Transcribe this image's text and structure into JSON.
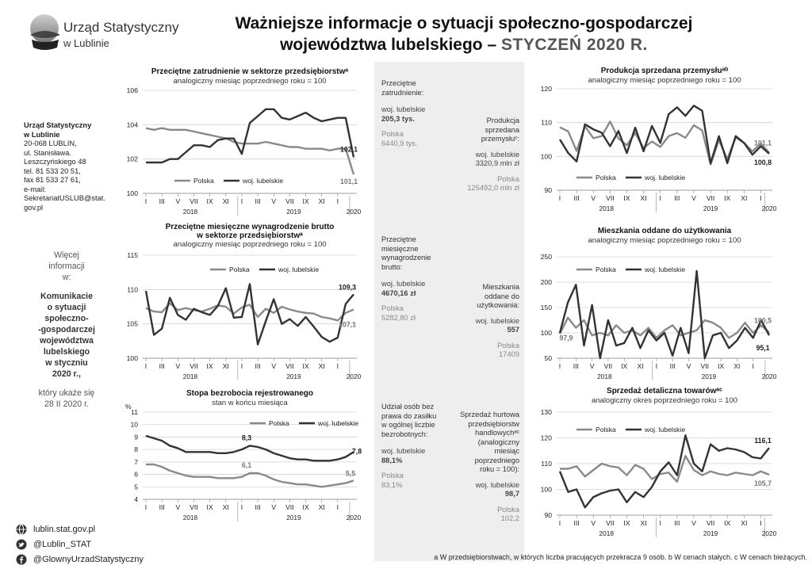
{
  "logo": {
    "line1": "Urząd Statystyczny",
    "line2": "w Lublinie"
  },
  "title": {
    "line1": "Ważniejsze informacje o sytuacji społeczno-gospodarczej",
    "line2": "województwa lubelskiego –",
    "date": "STYCZEŃ 2020 R."
  },
  "address": {
    "name1": "Urząd Statystyczny",
    "name2": "w Lublinie",
    "lines": [
      "20-068 LUBLIN,",
      "ul. Stanisława.",
      "Leszczyńskiego 48",
      "tel. 81 533 20 51,",
      "fax 81 533 27 61,",
      "e-mail:",
      "SekretariatUSLUB@stat.",
      "gov.pl"
    ]
  },
  "more_info": {
    "lines_top": [
      "Więcej",
      "informacji",
      "w:"
    ],
    "lines_bold": [
      "Komunikacie",
      "o sytuacji",
      "społeczno-",
      "-gospodarczej",
      "województwa",
      "lubelskiego",
      "w styczniu",
      "2020 r.,"
    ],
    "lines_bottom": [
      "który ukaże się",
      "28 II 2020 r."
    ]
  },
  "social": {
    "web": "lublin.stat.gov.pl",
    "twitter": "@Lublin_STAT",
    "facebook": "@GlownyUrzadStatystyczny"
  },
  "middle": {
    "employment": {
      "label": [
        "Przeciętne",
        "zatrudnienie:"
      ],
      "region_label": "woj. lubelskie",
      "region_value": "205,3 tys.",
      "country_label": "Polska",
      "country_value": "6440,9 tys."
    },
    "production": {
      "label": [
        "Produkcja",
        "sprzedana",
        "przemysłuᶜ:"
      ],
      "region_label": "woj. lubelskie",
      "region_value": "3320,9  mln zł",
      "country_label": "Polska",
      "country_value": "125492,0 mln zł"
    },
    "wages": {
      "label": [
        "Przeciętne",
        "miesięczne",
        "wynagrodzenie",
        "brutto:"
      ],
      "region_label": "woj. lubelskie",
      "region_value": "4670,16 zł",
      "country_label": "Polska",
      "country_value": "5282,80 zł"
    },
    "dwellings": {
      "label": [
        "Mieszkania",
        "oddane do",
        "użytkowania:"
      ],
      "region_label": "woj. lubelskie",
      "region_value": "557",
      "country_label": "Polska",
      "country_value": "17409"
    },
    "benefits": {
      "label": [
        "Udział osób bez",
        "prawa do zasiłku",
        "w ogólnej liczbie",
        "bezrobotnych:"
      ],
      "region_label": "woj. lubelskie",
      "region_value": "88,1%",
      "country_label": "Polska",
      "country_value": "83,1%"
    },
    "wholesale": {
      "label": [
        "Sprzedaż hurtowa",
        "przedsiębiorstw",
        "handlowychᵃᶜ",
        "(analogiczny",
        "miesiąc",
        "poprzedniego",
        "roku = 100):"
      ],
      "region_label": "woj. lubelskie",
      "region_value": "98,7",
      "country_label": "Polska",
      "country_value": "102,2"
    }
  },
  "footnote": "a W przedsiębiorstwach, w których liczba pracujących przekracza 9 osób.  b W cenach stałych.  c W cenach bieżących.",
  "colors": {
    "polska": "#8a8a8a",
    "region": "#333333"
  },
  "chart_data": [
    {
      "id": "employment",
      "type": "line",
      "title": "Przeciętne zatrudnienie w sektorze przedsiębiorstwᵃ",
      "subtitle": "analogiczny miesiąc poprzedniego roku = 100",
      "x_labels": [
        "I",
        "III",
        "V",
        "VII",
        "IX",
        "XI",
        "I",
        "III",
        "V",
        "VII",
        "IX",
        "XI",
        "I"
      ],
      "years": [
        "2018",
        "2019",
        "2020"
      ],
      "ylim": [
        100,
        106
      ],
      "yticks": [
        100,
        102,
        104,
        106
      ],
      "ytick_labels": [
        "100",
        "102",
        "104",
        "106"
      ],
      "legend": [
        "Polska",
        "woj. lubelskie"
      ],
      "series": [
        {
          "name": "Polska",
          "values": [
            103.8,
            103.7,
            103.8,
            103.7,
            103.7,
            103.7,
            103.6,
            103.5,
            103.4,
            103.3,
            103.2,
            103.0,
            102.9,
            102.9,
            102.9,
            103.0,
            102.9,
            102.8,
            102.7,
            102.7,
            102.6,
            102.6,
            102.6,
            102.5,
            102.6,
            102.6,
            101.1
          ]
        },
        {
          "name": "woj. lubelskie",
          "values": [
            101.8,
            101.8,
            101.8,
            102.0,
            102.0,
            102.4,
            102.8,
            102.8,
            102.7,
            103.1,
            103.2,
            103.2,
            102.3,
            104.1,
            104.5,
            104.9,
            104.9,
            104.4,
            104.3,
            104.5,
            104.7,
            104.4,
            104.2,
            104.3,
            104.4,
            104.4,
            102.1
          ]
        }
      ],
      "annotations": {
        "region_last": "102,1",
        "polska_last": "101,1"
      }
    },
    {
      "id": "wages",
      "type": "line",
      "title": "Przeciętne miesięczne wynagrodzenie brutto",
      "title2": "w sektorze przedsiębiorstwᵃ",
      "subtitle": "analogiczny miesiąc poprzedniego roku = 100",
      "x_labels": [
        "I",
        "III",
        "V",
        "VII",
        "IX",
        "XI",
        "I",
        "III",
        "V",
        "VII",
        "IX",
        "XI",
        "I"
      ],
      "years": [
        "2018",
        "2019",
        "2020"
      ],
      "ylim": [
        100,
        115
      ],
      "yticks": [
        100,
        105,
        110,
        115
      ],
      "ytick_labels": [
        "100",
        "105",
        "110",
        "115"
      ],
      "legend": [
        "Polska",
        "woj. lubelskie"
      ],
      "series": [
        {
          "name": "Polska",
          "values": [
            107.3,
            106.8,
            106.7,
            108.0,
            107.0,
            107.3,
            107.0,
            106.8,
            107.2,
            107.7,
            107.5,
            106.5,
            107.4,
            107.8,
            106.0,
            107.2,
            106.6,
            107.5,
            107.1,
            106.8,
            106.6,
            106.5,
            106.0,
            105.8,
            105.5,
            106.6,
            107.1
          ]
        },
        {
          "name": "woj. lubelskie",
          "values": [
            109.8,
            103.4,
            104.3,
            108.8,
            106.3,
            105.6,
            107.2,
            106.7,
            106.3,
            107.6,
            110.2,
            105.9,
            106.0,
            110.8,
            102.0,
            105.4,
            108.6,
            105.0,
            105.7,
            104.7,
            106.0,
            104.6,
            103.1,
            102.4,
            103.0,
            107.9,
            109.3
          ]
        }
      ],
      "annotations": {
        "region_last": "109,3",
        "polska_last": "107,1"
      }
    },
    {
      "id": "unemployment",
      "type": "line",
      "title": "Stopa bezrobocia rejestrowanego",
      "subtitle": "stan w końcu miesiąca",
      "yunit": "%",
      "x_labels": [
        "I",
        "III",
        "V",
        "VII",
        "IX",
        "XI",
        "I",
        "III",
        "V",
        "VII",
        "IX",
        "XI",
        "I"
      ],
      "years": [
        "2018",
        "2019",
        "2020"
      ],
      "ylim": [
        4,
        11
      ],
      "yticks": [
        4,
        5,
        6,
        7,
        8,
        9,
        10,
        11
      ],
      "ytick_labels": [
        "4",
        "5",
        "6",
        "7",
        "8",
        "9",
        "10",
        "11"
      ],
      "legend": [
        "Polska",
        "woj. lubelskie"
      ],
      "series": [
        {
          "name": "Polska",
          "values": [
            6.8,
            6.8,
            6.6,
            6.3,
            6.1,
            5.9,
            5.8,
            5.8,
            5.8,
            5.7,
            5.7,
            5.7,
            5.8,
            6.1,
            6.1,
            5.9,
            5.6,
            5.4,
            5.3,
            5.2,
            5.2,
            5.1,
            5.0,
            5.1,
            5.2,
            5.3,
            5.5
          ]
        },
        {
          "name": "woj. lubelskie",
          "values": [
            9.1,
            8.9,
            8.7,
            8.3,
            8.1,
            7.8,
            7.8,
            7.8,
            7.8,
            7.7,
            7.7,
            7.8,
            8.0,
            8.3,
            8.2,
            8.0,
            7.7,
            7.5,
            7.3,
            7.2,
            7.2,
            7.1,
            7.1,
            7.1,
            7.2,
            7.4,
            7.8
          ]
        }
      ],
      "annotations": {
        "region_mid": "8,3",
        "polska_mid": "6,1",
        "region_last": "7,8",
        "polska_last": "5,5"
      }
    },
    {
      "id": "production",
      "type": "line",
      "title": "Produkcja sprzedana przemysłuᵃᵇ",
      "subtitle": "analogiczny miesiąc poprzedniego roku = 100",
      "x_labels": [
        "I",
        "III",
        "V",
        "VII",
        "IX",
        "XI",
        "I",
        "III",
        "V",
        "VII",
        "IX",
        "XI",
        "I"
      ],
      "years": [
        "2018",
        "2019",
        "2020"
      ],
      "ylim": [
        90,
        120
      ],
      "yticks": [
        90,
        100,
        110,
        120
      ],
      "ytick_labels": [
        "90",
        "100",
        "110",
        "120"
      ],
      "legend": [
        "Polska",
        "woj. lubelskie"
      ],
      "series": [
        {
          "name": "Polska",
          "values": [
            108.6,
            107.4,
            101.6,
            108.9,
            105.4,
            106.0,
            110.3,
            105.3,
            103.3,
            106.9,
            102.5,
            104.4,
            102.8,
            106.0,
            106.9,
            105.5,
            109.2,
            107.7,
            97.6,
            104.8,
            99.2,
            105.6,
            104.0,
            101.5,
            103.8,
            101.1
          ]
        },
        {
          "name": "woj. lubelskie",
          "values": [
            105.0,
            101.0,
            98.5,
            109.5,
            108.0,
            107.0,
            103.0,
            107.5,
            101.0,
            108.5,
            101.5,
            109.0,
            104.0,
            112.5,
            114.5,
            112.0,
            115.0,
            113.5,
            98.0,
            106.0,
            98.0,
            106.0,
            104.0,
            100.5,
            103.0,
            100.8
          ]
        }
      ],
      "annotations": {
        "polska_last": "101,1",
        "region_last": "100,8"
      }
    },
    {
      "id": "dwellings",
      "type": "line",
      "title": "Mieszkania oddane do użytkowania",
      "subtitle": "analogiczny miesiąc poprzedniego roku = 100",
      "x_labels": [
        "I",
        "III",
        "V",
        "VII",
        "IX",
        "XI",
        "I",
        "III",
        "V",
        "VII",
        "IX",
        "XI",
        "I"
      ],
      "years": [
        "2018",
        "2019",
        "2020"
      ],
      "ylim": [
        50,
        250
      ],
      "yticks": [
        50,
        100,
        150,
        200,
        250
      ],
      "ytick_labels": [
        "50",
        "100",
        "150",
        "200",
        "250"
      ],
      "legend": [
        "Polska",
        "woj. lubelskie"
      ],
      "series": [
        {
          "name": "Polska",
          "values": [
            97.9,
            130,
            110,
            125,
            95,
            100,
            95,
            115,
            100,
            105,
            95,
            110,
            90,
            105,
            115,
            95,
            100,
            105,
            125,
            120,
            110,
            90,
            100,
            120,
            100,
            115,
            100.5
          ]
        },
        {
          "name": "woj. lubelskie",
          "values": [
            100,
            160,
            195,
            75,
            155,
            50,
            125,
            75,
            80,
            110,
            70,
            105,
            85,
            100,
            55,
            110,
            60,
            222,
            50,
            95,
            100,
            70,
            85,
            110,
            90,
            125,
            95.1
          ]
        }
      ],
      "annotations": {
        "polska_first": "97,9",
        "polska_last": "100,5",
        "region_last": "95,1"
      }
    },
    {
      "id": "retail",
      "type": "line",
      "title": "Sprzedaż detaliczna towarówᵃᶜ",
      "subtitle": "analogiczny okres poprzedniego roku = 100",
      "x_labels": [
        "I",
        "III",
        "V",
        "VII",
        "IX",
        "XI",
        "I",
        "III",
        "V",
        "VII",
        "IX",
        "XI",
        "I"
      ],
      "years": [
        "2018",
        "2019",
        "2020"
      ],
      "ylim": [
        90,
        130
      ],
      "yticks": [
        90,
        100,
        110,
        120,
        130
      ],
      "ytick_labels": [
        "90",
        "100",
        "110",
        "120",
        "130"
      ],
      "legend": [
        "Polska",
        "woj. lubelskie"
      ],
      "series": [
        {
          "name": "Polska",
          "values": [
            108.0,
            108.0,
            109.0,
            105.0,
            107.5,
            110.0,
            109.0,
            108.5,
            105.5,
            109.5,
            108.0,
            104.0,
            106.0,
            106.5,
            103.0,
            113.0,
            107.5,
            105.5,
            107.0,
            106.0,
            105.5,
            106.5,
            106.0,
            105.5,
            107.0,
            105.7
          ]
        },
        {
          "name": "woj. lubelskie",
          "values": [
            107.0,
            99.0,
            100.0,
            93.0,
            97.0,
            98.5,
            99.5,
            100.0,
            95.0,
            99.0,
            97.0,
            101.0,
            107.0,
            110.5,
            105.5,
            121.0,
            110.0,
            107.0,
            117.5,
            115.0,
            116.0,
            115.5,
            114.5,
            112.5,
            112.0,
            116.1
          ]
        }
      ],
      "annotations": {
        "region_last": "116,1",
        "polska_last": "105,7"
      }
    }
  ]
}
